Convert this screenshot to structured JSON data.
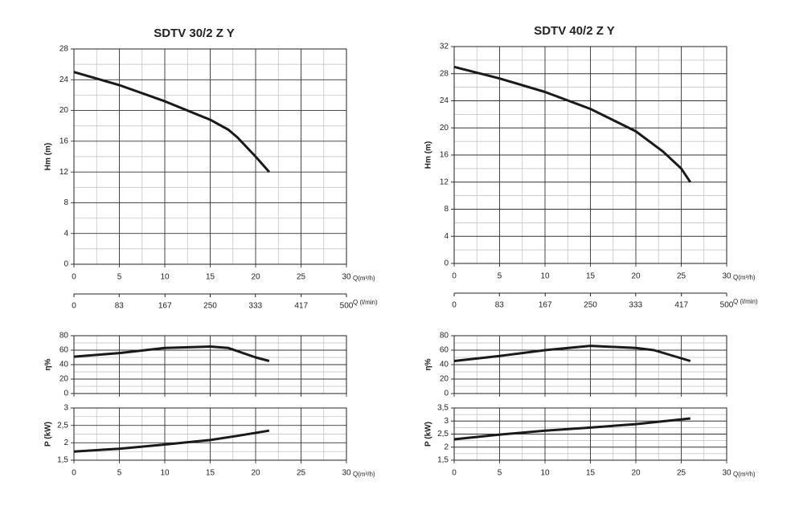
{
  "chart_data": [
    {
      "type": "line",
      "title": "SDTV 30/2 Z Y",
      "y_label": "Hm  (m)",
      "x_label": "Q(m³/h)",
      "xlim": [
        0,
        30
      ],
      "xticks": [
        0,
        5,
        10,
        15,
        20,
        25,
        30
      ],
      "ylim": [
        0,
        28
      ],
      "yticks": [
        0,
        4,
        8,
        12,
        16,
        20,
        24,
        28
      ],
      "x2_label": "Q (l/min)",
      "x2lim": [
        0,
        500
      ],
      "x2ticks": [
        0,
        83,
        167,
        250,
        333,
        417,
        500
      ],
      "series": [
        {
          "color": "#1a1a1a",
          "x": [
            0,
            5,
            10,
            15,
            17,
            18,
            20,
            21.5
          ],
          "values": [
            25,
            23.3,
            21.2,
            18.8,
            17.5,
            16.5,
            14,
            12
          ]
        }
      ]
    },
    {
      "type": "line",
      "y_label": "η%",
      "xlim": [
        0,
        30
      ],
      "xticks": [
        0,
        5,
        10,
        15,
        20,
        25,
        30
      ],
      "ylim": [
        0,
        80
      ],
      "yticks": [
        0,
        20,
        40,
        60,
        80
      ],
      "series": [
        {
          "color": "#1a1a1a",
          "x": [
            0,
            5,
            10,
            15,
            17,
            20,
            21.5
          ],
          "values": [
            51,
            56,
            63,
            65,
            63,
            50,
            45
          ]
        }
      ]
    },
    {
      "type": "line",
      "y_label": "P  (kW)",
      "x_label": "Q(m³/h)",
      "xlim": [
        0,
        30
      ],
      "xticks": [
        0,
        5,
        10,
        15,
        20,
        25,
        30
      ],
      "ylim": [
        1.5,
        3
      ],
      "yticks": [
        {
          "value": 1.5,
          "label": "1,5"
        },
        2,
        {
          "value": 2.5,
          "label": "2,5"
        },
        3
      ],
      "series": [
        {
          "color": "#1a1a1a",
          "x": [
            0,
            5,
            10,
            15,
            18,
            21.5
          ],
          "values": [
            1.75,
            1.83,
            1.95,
            2.08,
            2.2,
            2.35
          ]
        }
      ]
    },
    {
      "type": "line",
      "title": "SDTV 40/2 Z Y",
      "y_label": "Hm  (m)",
      "x_label": "Q(m³/h)",
      "xlim": [
        0,
        30
      ],
      "xticks": [
        0,
        5,
        10,
        15,
        20,
        25,
        30
      ],
      "ylim": [
        0,
        32
      ],
      "yticks": [
        0,
        4,
        8,
        12,
        16,
        20,
        24,
        28,
        32
      ],
      "x2_label": "Q (l/min)",
      "x2lim": [
        0,
        500
      ],
      "x2ticks": [
        0,
        83,
        167,
        250,
        333,
        417,
        500
      ],
      "series": [
        {
          "color": "#1a1a1a",
          "x": [
            0,
            5,
            10,
            15,
            20,
            23,
            25,
            26
          ],
          "values": [
            29,
            27.3,
            25.3,
            22.8,
            19.5,
            16.5,
            14,
            12
          ]
        }
      ]
    },
    {
      "type": "line",
      "y_label": "η%",
      "xlim": [
        0,
        30
      ],
      "xticks": [
        0,
        5,
        10,
        15,
        20,
        25,
        30
      ],
      "ylim": [
        0,
        80
      ],
      "yticks": [
        0,
        20,
        40,
        60,
        80
      ],
      "series": [
        {
          "color": "#1a1a1a",
          "x": [
            0,
            5,
            10,
            15,
            20,
            22,
            26
          ],
          "values": [
            45,
            52,
            60,
            66,
            63,
            60,
            45
          ]
        }
      ]
    },
    {
      "type": "line",
      "y_label": "P  (kW)",
      "x_label": "Q(m³/h)",
      "xlim": [
        0,
        30
      ],
      "xticks": [
        0,
        5,
        10,
        15,
        20,
        25,
        30
      ],
      "ylim": [
        1.5,
        3.5
      ],
      "yticks": [
        {
          "value": 1.5,
          "label": "1,5"
        },
        2,
        {
          "value": 2.5,
          "label": "2,5"
        },
        3,
        {
          "value": 3.5,
          "label": "3,5"
        }
      ],
      "series": [
        {
          "color": "#1a1a1a",
          "x": [
            0,
            5,
            10,
            15,
            20,
            26
          ],
          "values": [
            2.3,
            2.48,
            2.63,
            2.75,
            2.88,
            3.1
          ]
        }
      ]
    }
  ]
}
